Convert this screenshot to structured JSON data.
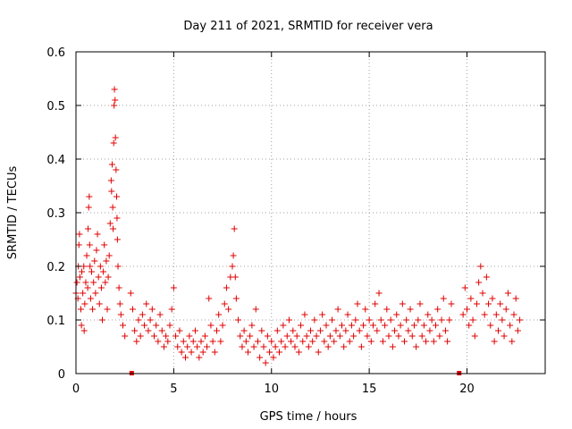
{
  "chart_data": {
    "type": "scatter",
    "title": "Day 211 of 2021, SRMTID for receiver vera",
    "xlabel": "GPS time / hours",
    "ylabel": "SRMTID / TECUs",
    "xlim": [
      0,
      24
    ],
    "ylim": [
      0,
      0.6
    ],
    "x_ticks": [
      0,
      5,
      10,
      15,
      20
    ],
    "y_ticks": [
      0,
      0.1,
      0.2,
      0.3,
      0.4,
      0.5,
      0.6
    ],
    "x_tick_labels": [
      "0",
      "5",
      "10",
      "15",
      "20"
    ],
    "y_tick_labels": [
      "0",
      "0.1",
      "0.2",
      "0.3",
      "0.4",
      "0.5",
      "0.6"
    ],
    "grid": true,
    "marker": "+",
    "color": "#e00000",
    "series": [
      {
        "name": "SRMTID",
        "points": [
          [
            0.0,
            0.15
          ],
          [
            0.05,
            0.17
          ],
          [
            0.1,
            0.14
          ],
          [
            0.12,
            0.2
          ],
          [
            0.15,
            0.24
          ],
          [
            0.18,
            0.26
          ],
          [
            0.2,
            0.18
          ],
          [
            0.25,
            0.12
          ],
          [
            0.28,
            0.09
          ],
          [
            0.3,
            0.19
          ],
          [
            0.35,
            0.15
          ],
          [
            0.4,
            0.2
          ],
          [
            0.42,
            0.08
          ],
          [
            0.45,
            0.13
          ],
          [
            0.5,
            0.17
          ],
          [
            0.55,
            0.22
          ],
          [
            0.6,
            0.16
          ],
          [
            0.62,
            0.27
          ],
          [
            0.65,
            0.31
          ],
          [
            0.68,
            0.33
          ],
          [
            0.7,
            0.24
          ],
          [
            0.72,
            0.2
          ],
          [
            0.75,
            0.14
          ],
          [
            0.8,
            0.19
          ],
          [
            0.85,
            0.12
          ],
          [
            0.9,
            0.17
          ],
          [
            0.95,
            0.21
          ],
          [
            1.0,
            0.15
          ],
          [
            1.05,
            0.23
          ],
          [
            1.1,
            0.26
          ],
          [
            1.15,
            0.18
          ],
          [
            1.2,
            0.13
          ],
          [
            1.25,
            0.2
          ],
          [
            1.3,
            0.16
          ],
          [
            1.35,
            0.1
          ],
          [
            1.4,
            0.19
          ],
          [
            1.45,
            0.24
          ],
          [
            1.5,
            0.17
          ],
          [
            1.55,
            0.21
          ],
          [
            1.6,
            0.12
          ],
          [
            1.65,
            0.18
          ],
          [
            1.7,
            0.22
          ],
          [
            1.75,
            0.28
          ],
          [
            1.8,
            0.36
          ],
          [
            1.82,
            0.34
          ],
          [
            1.85,
            0.39
          ],
          [
            1.88,
            0.31
          ],
          [
            1.9,
            0.27
          ],
          [
            1.93,
            0.43
          ],
          [
            1.95,
            0.5
          ],
          [
            1.97,
            0.53
          ],
          [
            2.0,
            0.51
          ],
          [
            2.02,
            0.44
          ],
          [
            2.05,
            0.38
          ],
          [
            2.08,
            0.33
          ],
          [
            2.1,
            0.29
          ],
          [
            2.12,
            0.25
          ],
          [
            2.15,
            0.2
          ],
          [
            2.2,
            0.16
          ],
          [
            2.25,
            0.13
          ],
          [
            2.3,
            0.11
          ],
          [
            2.4,
            0.09
          ],
          [
            2.5,
            0.07
          ],
          [
            2.8,
            0.15
          ],
          [
            2.9,
            0.12
          ],
          [
            3.0,
            0.08
          ],
          [
            3.1,
            0.06
          ],
          [
            3.2,
            0.1
          ],
          [
            3.3,
            0.07
          ],
          [
            3.4,
            0.11
          ],
          [
            3.5,
            0.09
          ],
          [
            3.6,
            0.13
          ],
          [
            3.7,
            0.08
          ],
          [
            3.8,
            0.1
          ],
          [
            3.9,
            0.12
          ],
          [
            4.0,
            0.07
          ],
          [
            4.1,
            0.09
          ],
          [
            4.2,
            0.06
          ],
          [
            4.3,
            0.11
          ],
          [
            4.4,
            0.08
          ],
          [
            4.5,
            0.05
          ],
          [
            4.6,
            0.07
          ],
          [
            4.7,
            0.06
          ],
          [
            4.8,
            0.09
          ],
          [
            4.9,
            0.12
          ],
          [
            5.0,
            0.16
          ],
          [
            5.1,
            0.07
          ],
          [
            5.2,
            0.05
          ],
          [
            5.3,
            0.08
          ],
          [
            5.4,
            0.04
          ],
          [
            5.5,
            0.06
          ],
          [
            5.6,
            0.03
          ],
          [
            5.7,
            0.05
          ],
          [
            5.8,
            0.07
          ],
          [
            5.9,
            0.04
          ],
          [
            6.0,
            0.06
          ],
          [
            6.1,
            0.08
          ],
          [
            6.2,
            0.05
          ],
          [
            6.3,
            0.03
          ],
          [
            6.4,
            0.06
          ],
          [
            6.5,
            0.04
          ],
          [
            6.6,
            0.07
          ],
          [
            6.7,
            0.05
          ],
          [
            6.8,
            0.14
          ],
          [
            6.9,
            0.09
          ],
          [
            7.0,
            0.06
          ],
          [
            7.1,
            0.04
          ],
          [
            7.2,
            0.08
          ],
          [
            7.3,
            0.11
          ],
          [
            7.4,
            0.06
          ],
          [
            7.5,
            0.09
          ],
          [
            7.6,
            0.13
          ],
          [
            7.7,
            0.16
          ],
          [
            7.8,
            0.12
          ],
          [
            7.9,
            0.18
          ],
          [
            8.0,
            0.2
          ],
          [
            8.05,
            0.22
          ],
          [
            8.1,
            0.27
          ],
          [
            8.15,
            0.18
          ],
          [
            8.2,
            0.14
          ],
          [
            8.3,
            0.1
          ],
          [
            8.4,
            0.07
          ],
          [
            8.5,
            0.05
          ],
          [
            8.6,
            0.08
          ],
          [
            8.7,
            0.06
          ],
          [
            8.8,
            0.04
          ],
          [
            8.9,
            0.07
          ],
          [
            9.0,
            0.09
          ],
          [
            9.1,
            0.05
          ],
          [
            9.2,
            0.12
          ],
          [
            9.3,
            0.06
          ],
          [
            9.4,
            0.03
          ],
          [
            9.5,
            0.08
          ],
          [
            9.6,
            0.05
          ],
          [
            9.7,
            0.02
          ],
          [
            9.8,
            0.07
          ],
          [
            9.9,
            0.04
          ],
          [
            10.0,
            0.06
          ],
          [
            10.1,
            0.03
          ],
          [
            10.2,
            0.05
          ],
          [
            10.3,
            0.08
          ],
          [
            10.4,
            0.04
          ],
          [
            10.5,
            0.06
          ],
          [
            10.6,
            0.09
          ],
          [
            10.7,
            0.05
          ],
          [
            10.8,
            0.07
          ],
          [
            10.9,
            0.1
          ],
          [
            11.0,
            0.06
          ],
          [
            11.1,
            0.08
          ],
          [
            11.2,
            0.05
          ],
          [
            11.3,
            0.07
          ],
          [
            11.4,
            0.04
          ],
          [
            11.5,
            0.09
          ],
          [
            11.6,
            0.06
          ],
          [
            11.7,
            0.11
          ],
          [
            11.8,
            0.07
          ],
          [
            11.9,
            0.05
          ],
          [
            12.0,
            0.08
          ],
          [
            12.1,
            0.06
          ],
          [
            12.2,
            0.1
          ],
          [
            12.3,
            0.07
          ],
          [
            12.4,
            0.04
          ],
          [
            12.5,
            0.08
          ],
          [
            12.6,
            0.11
          ],
          [
            12.7,
            0.06
          ],
          [
            12.8,
            0.09
          ],
          [
            12.9,
            0.05
          ],
          [
            13.0,
            0.07
          ],
          [
            13.1,
            0.1
          ],
          [
            13.2,
            0.06
          ],
          [
            13.3,
            0.08
          ],
          [
            13.4,
            0.12
          ],
          [
            13.5,
            0.07
          ],
          [
            13.6,
            0.09
          ],
          [
            13.7,
            0.05
          ],
          [
            13.8,
            0.08
          ],
          [
            13.9,
            0.11
          ],
          [
            14.0,
            0.06
          ],
          [
            14.1,
            0.09
          ],
          [
            14.2,
            0.07
          ],
          [
            14.3,
            0.1
          ],
          [
            14.4,
            0.13
          ],
          [
            14.5,
            0.08
          ],
          [
            14.6,
            0.05
          ],
          [
            14.7,
            0.09
          ],
          [
            14.8,
            0.12
          ],
          [
            14.9,
            0.07
          ],
          [
            15.0,
            0.1
          ],
          [
            15.1,
            0.06
          ],
          [
            15.2,
            0.09
          ],
          [
            15.3,
            0.13
          ],
          [
            15.4,
            0.08
          ],
          [
            15.5,
            0.15
          ],
          [
            15.6,
            0.1
          ],
          [
            15.7,
            0.06
          ],
          [
            15.8,
            0.09
          ],
          [
            15.9,
            0.12
          ],
          [
            16.0,
            0.07
          ],
          [
            16.1,
            0.1
          ],
          [
            16.2,
            0.05
          ],
          [
            16.3,
            0.08
          ],
          [
            16.4,
            0.11
          ],
          [
            16.5,
            0.07
          ],
          [
            16.6,
            0.09
          ],
          [
            16.7,
            0.13
          ],
          [
            16.8,
            0.06
          ],
          [
            16.9,
            0.1
          ],
          [
            17.0,
            0.08
          ],
          [
            17.1,
            0.12
          ],
          [
            17.2,
            0.07
          ],
          [
            17.3,
            0.09
          ],
          [
            17.4,
            0.05
          ],
          [
            17.5,
            0.1
          ],
          [
            17.6,
            0.13
          ],
          [
            17.7,
            0.07
          ],
          [
            17.8,
            0.09
          ],
          [
            17.9,
            0.06
          ],
          [
            18.0,
            0.11
          ],
          [
            18.1,
            0.08
          ],
          [
            18.2,
            0.1
          ],
          [
            18.3,
            0.06
          ],
          [
            18.4,
            0.09
          ],
          [
            18.5,
            0.12
          ],
          [
            18.6,
            0.07
          ],
          [
            18.7,
            0.1
          ],
          [
            18.8,
            0.14
          ],
          [
            18.9,
            0.08
          ],
          [
            19.0,
            0.06
          ],
          [
            19.1,
            0.1
          ],
          [
            19.2,
            0.13
          ],
          [
            19.8,
            0.11
          ],
          [
            19.9,
            0.16
          ],
          [
            20.0,
            0.12
          ],
          [
            20.1,
            0.09
          ],
          [
            20.2,
            0.14
          ],
          [
            20.3,
            0.1
          ],
          [
            20.4,
            0.07
          ],
          [
            20.5,
            0.13
          ],
          [
            20.6,
            0.17
          ],
          [
            20.7,
            0.2
          ],
          [
            20.8,
            0.15
          ],
          [
            20.9,
            0.11
          ],
          [
            21.0,
            0.18
          ],
          [
            21.1,
            0.13
          ],
          [
            21.2,
            0.09
          ],
          [
            21.3,
            0.14
          ],
          [
            21.4,
            0.06
          ],
          [
            21.5,
            0.11
          ],
          [
            21.6,
            0.08
          ],
          [
            21.7,
            0.13
          ],
          [
            21.8,
            0.1
          ],
          [
            21.9,
            0.07
          ],
          [
            22.0,
            0.12
          ],
          [
            22.1,
            0.15
          ],
          [
            22.2,
            0.09
          ],
          [
            22.3,
            0.06
          ],
          [
            22.4,
            0.11
          ],
          [
            22.5,
            0.14
          ],
          [
            22.6,
            0.08
          ],
          [
            22.7,
            0.1
          ]
        ]
      }
    ],
    "gap_markers_x": [
      2.85,
      19.6
    ]
  }
}
